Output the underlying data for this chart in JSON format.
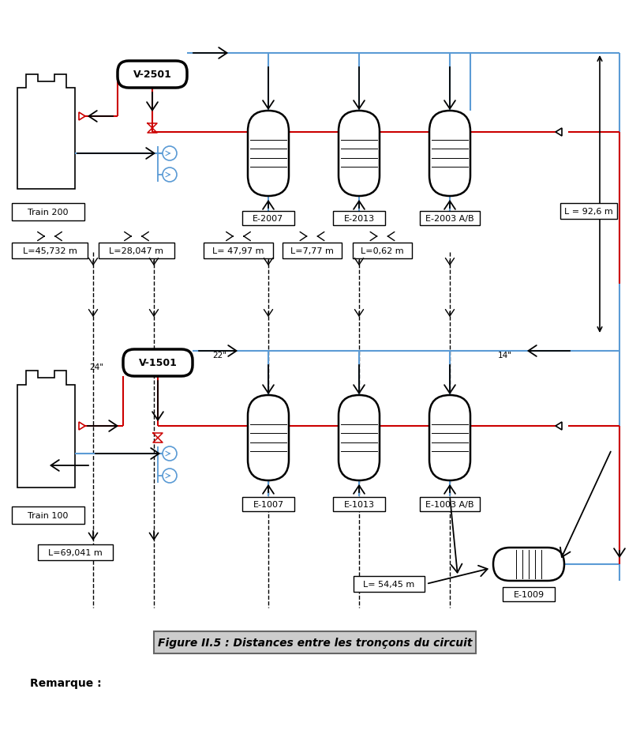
{
  "title": "Figure II.5 : Distances entre les tronçons du circuit",
  "remarque": "Remarque :",
  "bg_color": "#ffffff",
  "line_red": "#cc0000",
  "line_blue": "#5b9bd5",
  "line_black": "#000000",
  "train200_label": "Train 200",
  "train100_label": "Train 100",
  "v2501_label": "V-2501",
  "v1501_label": "V-1501",
  "e2007_label": "E-2007",
  "e2013_label": "E-2013",
  "e2003_label": "E-2003 A/B",
  "e1007_label": "E-1007",
  "e1013_label": "E-1013",
  "e1003_label": "E-1003 A/B",
  "e1009_label": "E-1009",
  "dist_label_92": "L = 92,6 m",
  "dist_label_69": "L=69,041 m",
  "dist_label_54": "L= 54,45 m",
  "pipe_24": "24\"",
  "pipe_22": "22\"",
  "pipe_14": "14\""
}
